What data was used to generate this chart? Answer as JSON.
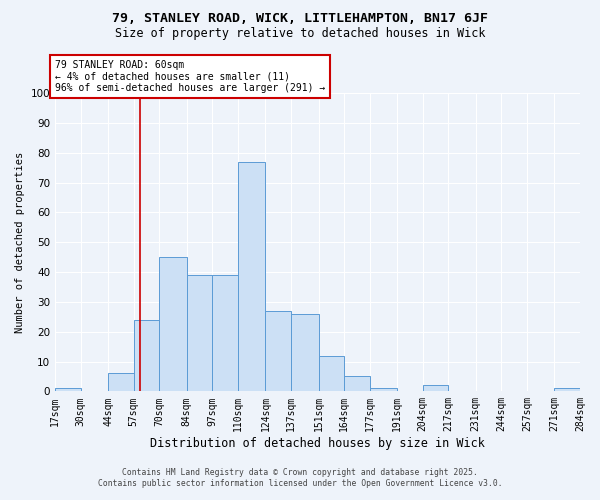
{
  "title1": "79, STANLEY ROAD, WICK, LITTLEHAMPTON, BN17 6JF",
  "title2": "Size of property relative to detached houses in Wick",
  "xlabel": "Distribution of detached houses by size in Wick",
  "ylabel": "Number of detached properties",
  "bin_edges": [
    17,
    30,
    44,
    57,
    70,
    84,
    97,
    110,
    124,
    137,
    151,
    164,
    177,
    191,
    204,
    217,
    231,
    244,
    257,
    271,
    284
  ],
  "bar_heights": [
    1,
    0,
    6,
    24,
    45,
    39,
    39,
    77,
    27,
    26,
    12,
    5,
    1,
    0,
    2,
    0,
    0,
    0,
    0,
    1
  ],
  "tick_labels": [
    "17sqm",
    "30sqm",
    "44sqm",
    "57sqm",
    "70sqm",
    "84sqm",
    "97sqm",
    "110sqm",
    "124sqm",
    "137sqm",
    "151sqm",
    "164sqm",
    "177sqm",
    "191sqm",
    "204sqm",
    "217sqm",
    "231sqm",
    "244sqm",
    "257sqm",
    "271sqm",
    "284sqm"
  ],
  "bar_facecolor": "#cce0f5",
  "bar_edgecolor": "#5b9bd5",
  "vline_x": 60,
  "vline_color": "#cc0000",
  "annotation_title": "79 STANLEY ROAD: 60sqm",
  "annotation_line1": "← 4% of detached houses are smaller (11)",
  "annotation_line2": "96% of semi-detached houses are larger (291) →",
  "annotation_box_color": "#cc0000",
  "ylim": [
    0,
    100
  ],
  "yticks": [
    0,
    10,
    20,
    30,
    40,
    50,
    60,
    70,
    80,
    90,
    100
  ],
  "footer1": "Contains HM Land Registry data © Crown copyright and database right 2025.",
  "footer2": "Contains public sector information licensed under the Open Government Licence v3.0.",
  "bg_color": "#eef3fa",
  "grid_color": "#ffffff",
  "title1_fontsize": 9.5,
  "title2_fontsize": 8.5,
  "ylabel_fontsize": 7.5,
  "xlabel_fontsize": 8.5,
  "tick_fontsize": 7,
  "ytick_fontsize": 7.5,
  "ann_fontsize": 7,
  "footer_fontsize": 5.8
}
